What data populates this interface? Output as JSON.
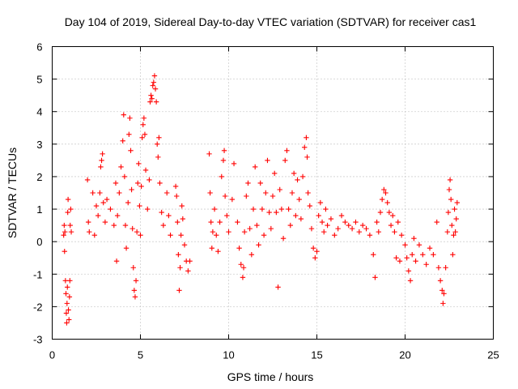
{
  "chart_data": {
    "type": "scatter",
    "title": "Day 104 of 2019, Sidereal Day-to-day VTEC variation (SDTVAR) for receiver cas1",
    "xlabel": "GPS time / hours",
    "ylabel": "SDTVAR / TECUs",
    "xlim": [
      0,
      25
    ],
    "ylim": [
      -3,
      6
    ],
    "xticks": [
      "0",
      "5",
      "10",
      "15",
      "20",
      "25"
    ],
    "yticks": [
      "-3",
      "-2",
      "-1",
      "0",
      "1",
      "2",
      "3",
      "4",
      "5",
      "6"
    ],
    "grid": true,
    "marker": "+",
    "color": "#ff0000",
    "series": [
      {
        "name": "SDTVAR",
        "points": [
          [
            0.65,
            0.2
          ],
          [
            0.68,
            0.5
          ],
          [
            0.7,
            -0.3
          ],
          [
            0.72,
            0.3
          ],
          [
            0.75,
            -1.2
          ],
          [
            0.78,
            -1.6
          ],
          [
            0.8,
            -2.2
          ],
          [
            0.82,
            -2.5
          ],
          [
            0.84,
            -1.9
          ],
          [
            0.86,
            -1.4
          ],
          [
            0.88,
            0.9
          ],
          [
            0.9,
            1.3
          ],
          [
            0.92,
            -2.1
          ],
          [
            0.95,
            -2.4
          ],
          [
            0.98,
            -1.7
          ],
          [
            1.0,
            -1.2
          ],
          [
            1.02,
            0.5
          ],
          [
            1.05,
            1.0
          ],
          [
            1.08,
            0.3
          ],
          [
            2.0,
            1.9
          ],
          [
            2.05,
            0.6
          ],
          [
            2.1,
            0.3
          ],
          [
            2.3,
            1.5
          ],
          [
            2.4,
            0.2
          ],
          [
            2.5,
            1.1
          ],
          [
            2.6,
            0.8
          ],
          [
            2.7,
            1.5
          ],
          [
            2.75,
            2.3
          ],
          [
            2.8,
            2.5
          ],
          [
            2.85,
            2.7
          ],
          [
            2.9,
            1.2
          ],
          [
            3.0,
            0.6
          ],
          [
            3.1,
            1.3
          ],
          [
            3.3,
            1.0
          ],
          [
            3.5,
            0.5
          ],
          [
            3.6,
            1.8
          ],
          [
            3.65,
            -0.6
          ],
          [
            3.7,
            0.8
          ],
          [
            3.8,
            1.5
          ],
          [
            3.9,
            2.3
          ],
          [
            4.0,
            3.1
          ],
          [
            4.05,
            3.9
          ],
          [
            4.1,
            2.0
          ],
          [
            4.15,
            0.5
          ],
          [
            4.2,
            -0.2
          ],
          [
            4.3,
            1.2
          ],
          [
            4.35,
            3.3
          ],
          [
            4.4,
            3.8
          ],
          [
            4.45,
            2.8
          ],
          [
            4.5,
            1.6
          ],
          [
            4.55,
            0.4
          ],
          [
            4.6,
            -0.8
          ],
          [
            4.65,
            -1.5
          ],
          [
            4.7,
            -1.7
          ],
          [
            4.75,
            -1.2
          ],
          [
            4.8,
            0.3
          ],
          [
            4.85,
            1.8
          ],
          [
            4.9,
            2.4
          ],
          [
            4.95,
            1.1
          ],
          [
            5.0,
            0.2
          ],
          [
            5.05,
            1.7
          ],
          [
            5.1,
            3.2
          ],
          [
            5.15,
            3.6
          ],
          [
            5.2,
            3.8
          ],
          [
            5.25,
            3.3
          ],
          [
            5.3,
            2.2
          ],
          [
            5.4,
            1.0
          ],
          [
            5.5,
            1.9
          ],
          [
            5.55,
            4.3
          ],
          [
            5.6,
            4.5
          ],
          [
            5.65,
            4.4
          ],
          [
            5.7,
            4.8
          ],
          [
            5.75,
            4.9
          ],
          [
            5.8,
            5.1
          ],
          [
            5.85,
            4.7
          ],
          [
            5.9,
            4.3
          ],
          [
            5.95,
            3.0
          ],
          [
            6.0,
            2.6
          ],
          [
            6.05,
            3.2
          ],
          [
            6.1,
            1.8
          ],
          [
            6.2,
            0.9
          ],
          [
            6.3,
            0.5
          ],
          [
            6.5,
            1.5
          ],
          [
            6.6,
            0.8
          ],
          [
            6.7,
            0.2
          ],
          [
            7.0,
            1.7
          ],
          [
            7.05,
            1.4
          ],
          [
            7.1,
            0.6
          ],
          [
            7.15,
            -0.4
          ],
          [
            7.2,
            -1.5
          ],
          [
            7.25,
            -0.8
          ],
          [
            7.3,
            0.2
          ],
          [
            7.35,
            1.1
          ],
          [
            7.4,
            0.7
          ],
          [
            7.5,
            -0.1
          ],
          [
            7.6,
            -0.6
          ],
          [
            7.7,
            -0.9
          ],
          [
            7.8,
            -0.6
          ],
          [
            8.9,
            2.7
          ],
          [
            8.95,
            1.5
          ],
          [
            9.0,
            0.6
          ],
          [
            9.05,
            -0.2
          ],
          [
            9.1,
            0.3
          ],
          [
            9.2,
            1.0
          ],
          [
            9.3,
            0.2
          ],
          [
            9.4,
            -0.3
          ],
          [
            9.5,
            0.6
          ],
          [
            9.6,
            2.0
          ],
          [
            9.7,
            2.5
          ],
          [
            9.75,
            2.8
          ],
          [
            9.8,
            1.4
          ],
          [
            9.9,
            0.8
          ],
          [
            10.0,
            0.3
          ],
          [
            10.2,
            1.3
          ],
          [
            10.3,
            2.4
          ],
          [
            10.5,
            0.6
          ],
          [
            10.6,
            -0.2
          ],
          [
            10.7,
            -0.7
          ],
          [
            10.8,
            -1.1
          ],
          [
            10.85,
            -0.8
          ],
          [
            10.9,
            0.3
          ],
          [
            11.0,
            1.4
          ],
          [
            11.1,
            1.8
          ],
          [
            11.2,
            0.4
          ],
          [
            11.3,
            -0.4
          ],
          [
            11.4,
            1.0
          ],
          [
            11.5,
            2.3
          ],
          [
            11.6,
            0.5
          ],
          [
            11.7,
            -0.1
          ],
          [
            11.8,
            1.8
          ],
          [
            11.9,
            1.0
          ],
          [
            12.0,
            0.2
          ],
          [
            12.1,
            1.5
          ],
          [
            12.2,
            2.5
          ],
          [
            12.3,
            0.9
          ],
          [
            12.4,
            0.4
          ],
          [
            12.5,
            1.4
          ],
          [
            12.6,
            2.1
          ],
          [
            12.7,
            0.9
          ],
          [
            12.8,
            -1.4
          ],
          [
            12.9,
            1.6
          ],
          [
            13.0,
            1.0
          ],
          [
            13.1,
            0.1
          ],
          [
            13.2,
            2.5
          ],
          [
            13.3,
            2.8
          ],
          [
            13.4,
            1.0
          ],
          [
            13.5,
            0.5
          ],
          [
            13.6,
            1.5
          ],
          [
            13.7,
            2.1
          ],
          [
            13.8,
            0.8
          ],
          [
            13.9,
            1.9
          ],
          [
            14.0,
            1.3
          ],
          [
            14.1,
            0.7
          ],
          [
            14.2,
            2.0
          ],
          [
            14.3,
            2.9
          ],
          [
            14.4,
            3.2
          ],
          [
            14.45,
            2.6
          ],
          [
            14.5,
            1.5
          ],
          [
            14.6,
            1.1
          ],
          [
            14.7,
            0.4
          ],
          [
            14.8,
            -0.2
          ],
          [
            14.9,
            -0.5
          ],
          [
            15.0,
            -0.3
          ],
          [
            15.1,
            0.8
          ],
          [
            15.2,
            1.2
          ],
          [
            15.3,
            0.6
          ],
          [
            15.4,
            0.3
          ],
          [
            15.5,
            1.0
          ],
          [
            15.6,
            0.5
          ],
          [
            15.8,
            0.7
          ],
          [
            16.0,
            0.2
          ],
          [
            16.2,
            0.4
          ],
          [
            16.4,
            0.8
          ],
          [
            16.6,
            0.6
          ],
          [
            16.8,
            0.5
          ],
          [
            17.0,
            0.4
          ],
          [
            17.2,
            0.6
          ],
          [
            17.4,
            0.3
          ],
          [
            17.6,
            0.5
          ],
          [
            17.8,
            0.4
          ],
          [
            18.0,
            0.2
          ],
          [
            18.2,
            -0.4
          ],
          [
            18.3,
            -1.1
          ],
          [
            18.4,
            0.6
          ],
          [
            18.5,
            0.3
          ],
          [
            18.6,
            0.9
          ],
          [
            18.7,
            1.3
          ],
          [
            18.8,
            1.6
          ],
          [
            18.9,
            1.5
          ],
          [
            19.0,
            1.2
          ],
          [
            19.1,
            0.9
          ],
          [
            19.2,
            0.5
          ],
          [
            19.3,
            0.8
          ],
          [
            19.4,
            0.3
          ],
          [
            19.5,
            -0.5
          ],
          [
            19.6,
            0.6
          ],
          [
            19.7,
            -0.6
          ],
          [
            19.8,
            0.2
          ],
          [
            20.0,
            -0.1
          ],
          [
            20.1,
            -0.5
          ],
          [
            20.2,
            -0.9
          ],
          [
            20.3,
            -1.2
          ],
          [
            20.4,
            -0.4
          ],
          [
            20.5,
            0.1
          ],
          [
            20.6,
            -0.6
          ],
          [
            20.8,
            -0.1
          ],
          [
            21.0,
            -0.4
          ],
          [
            21.2,
            -0.7
          ],
          [
            21.4,
            -0.2
          ],
          [
            21.6,
            -0.4
          ],
          [
            21.8,
            0.6
          ],
          [
            21.9,
            -0.8
          ],
          [
            22.0,
            -1.2
          ],
          [
            22.1,
            -1.5
          ],
          [
            22.15,
            -1.9
          ],
          [
            22.2,
            -1.6
          ],
          [
            22.3,
            -0.8
          ],
          [
            22.4,
            0.3
          ],
          [
            22.45,
            0.9
          ],
          [
            22.5,
            1.6
          ],
          [
            22.55,
            1.9
          ],
          [
            22.6,
            1.3
          ],
          [
            22.65,
            0.5
          ],
          [
            22.7,
            -0.4
          ],
          [
            22.75,
            0.2
          ],
          [
            22.8,
            1.0
          ],
          [
            22.85,
            0.3
          ],
          [
            22.9,
            0.7
          ],
          [
            22.95,
            1.2
          ]
        ]
      }
    ]
  }
}
